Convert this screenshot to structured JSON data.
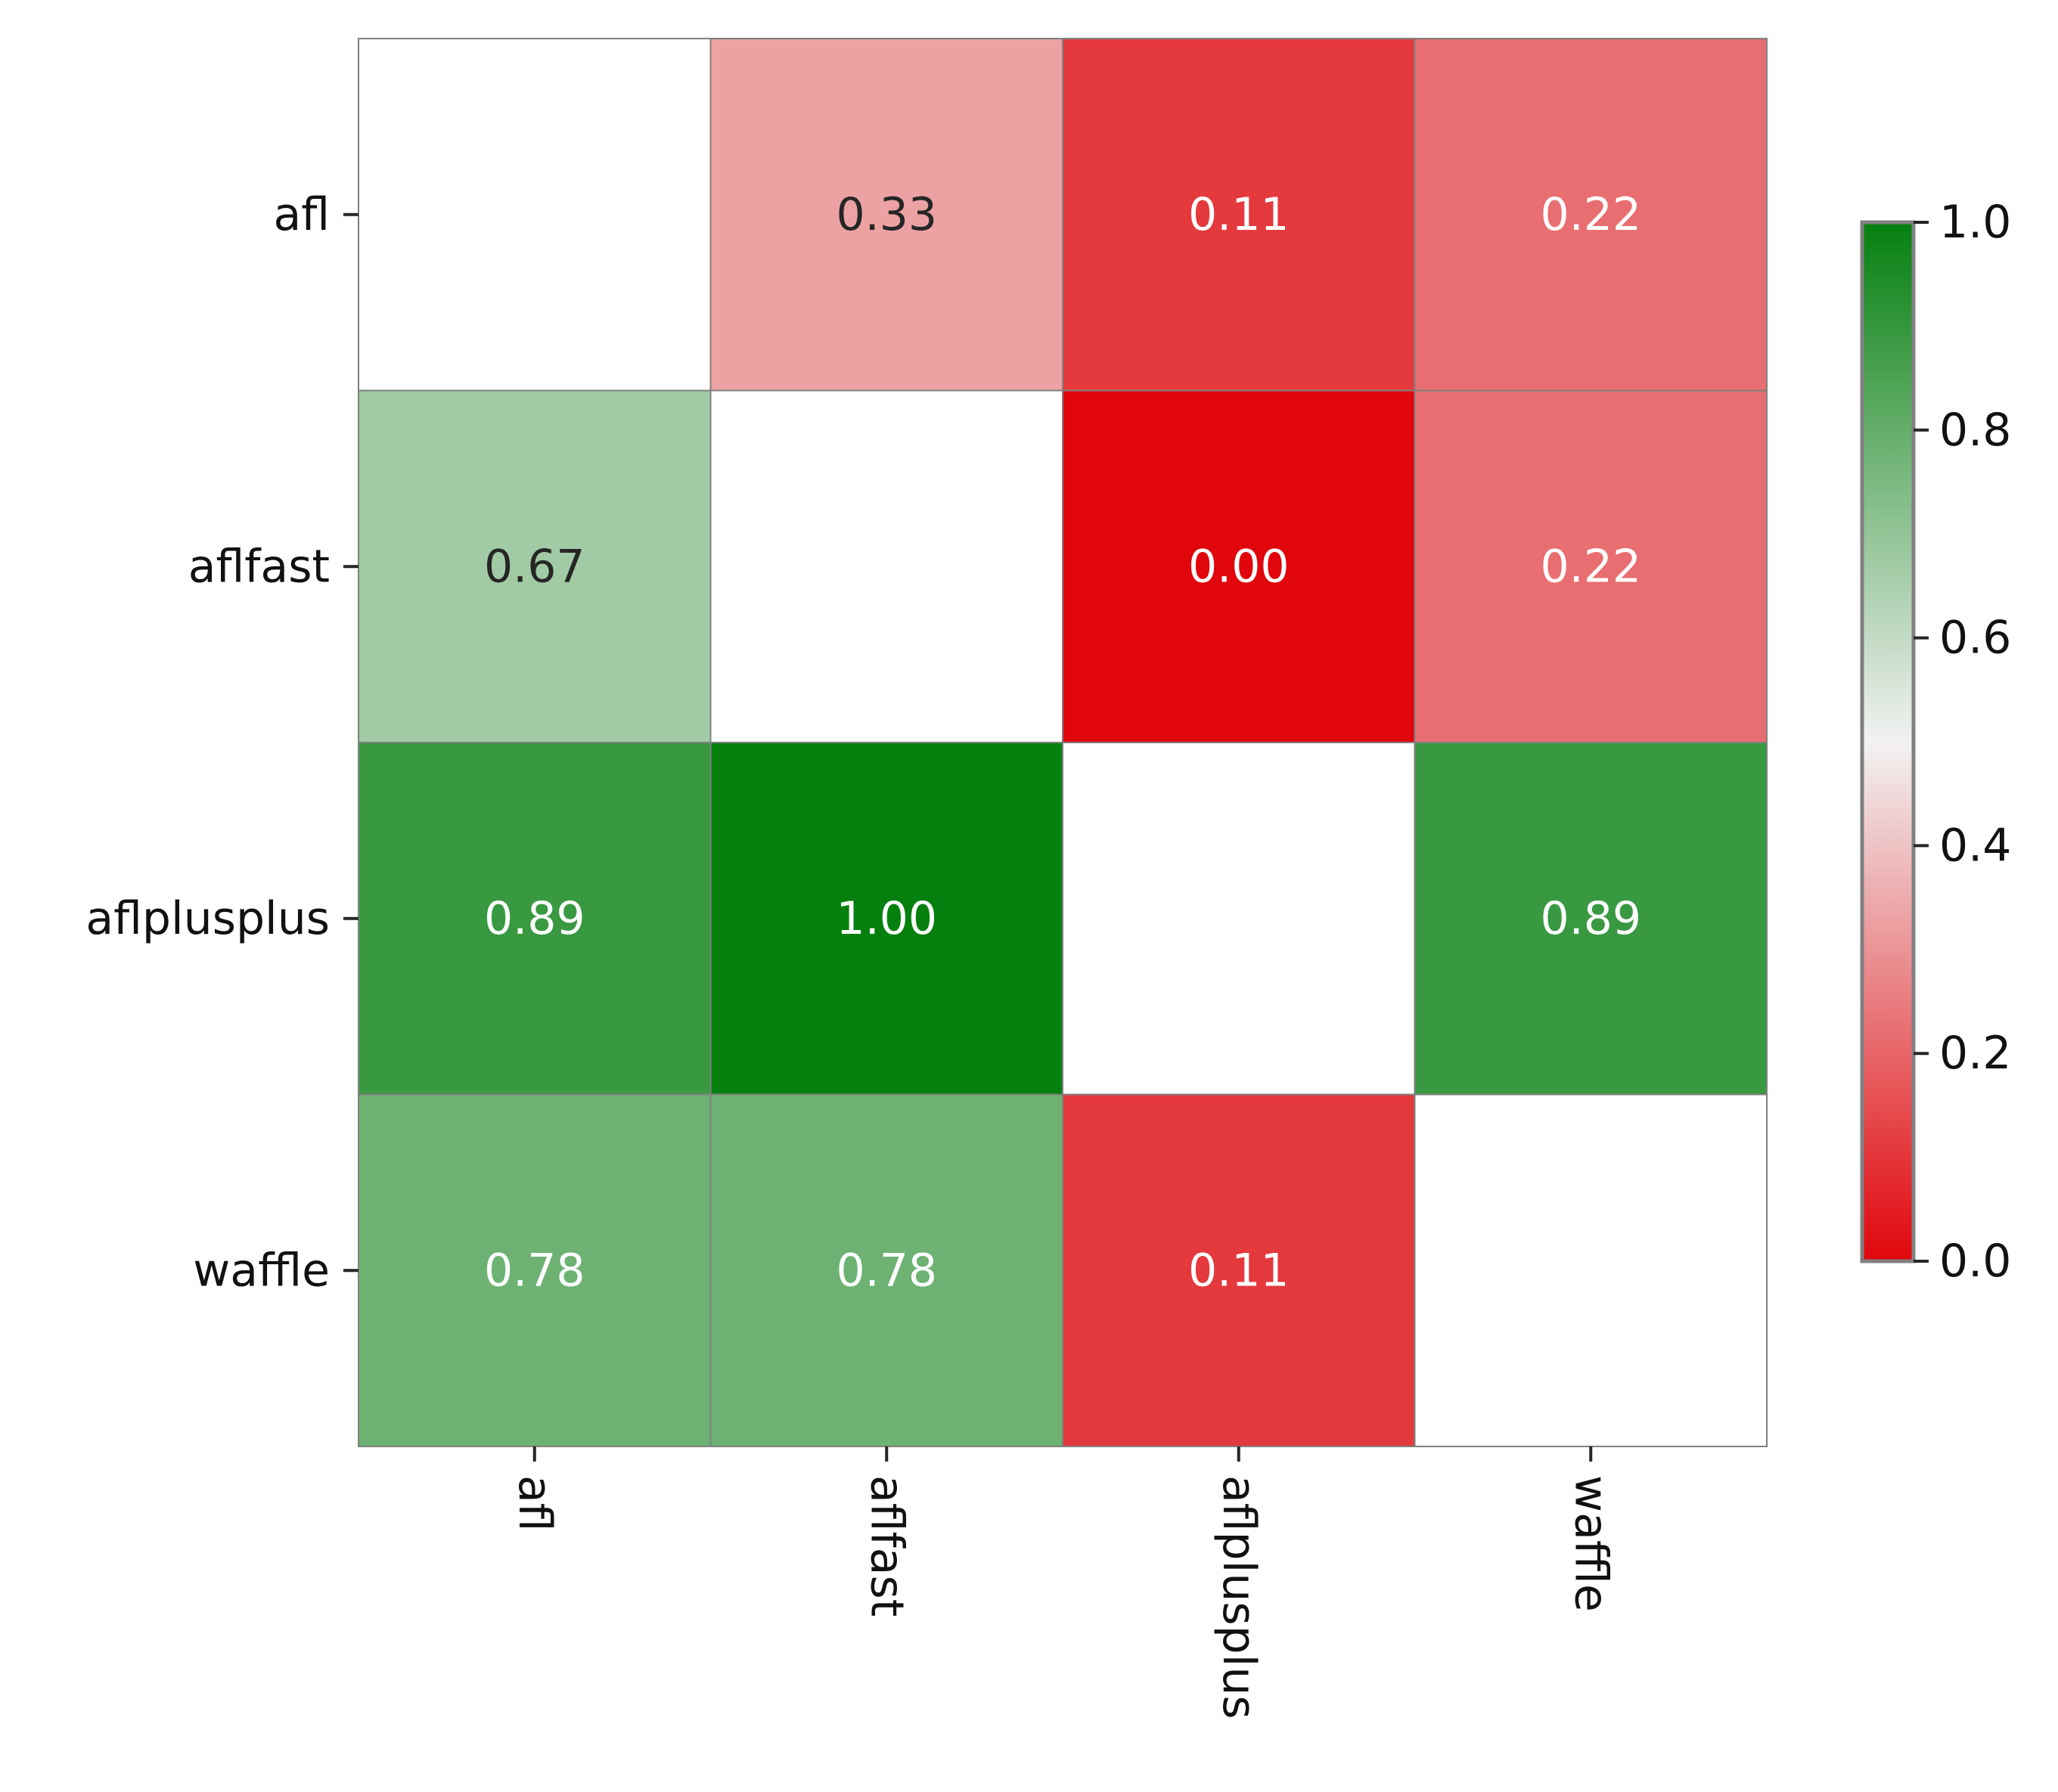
{
  "chart_data": {
    "type": "heatmap",
    "title": "",
    "xlabel": "",
    "ylabel": "",
    "rows": [
      "afl",
      "aflfast",
      "aflplusplus",
      "waffle"
    ],
    "columns": [
      "afl",
      "aflfast",
      "aflplusplus",
      "waffle"
    ],
    "values": [
      [
        null,
        0.33,
        0.11,
        0.22
      ],
      [
        0.67,
        null,
        0.0,
        0.22
      ],
      [
        0.89,
        1.0,
        null,
        0.89
      ],
      [
        0.78,
        0.78,
        0.11,
        null
      ]
    ],
    "cell_labels": [
      [
        "",
        "0.33",
        "0.11",
        "0.22"
      ],
      [
        "0.67",
        "",
        "0.00",
        "0.22"
      ],
      [
        "0.89",
        "1.00",
        "",
        "0.89"
      ],
      [
        "0.78",
        "0.78",
        "0.11",
        ""
      ]
    ],
    "vlim": [
      0,
      1
    ],
    "colorbar": {
      "ticks": [
        0.0,
        0.2,
        0.4,
        0.6,
        0.8,
        1.0
      ],
      "tick_labels": [
        "0.0",
        "0.2",
        "0.4",
        "0.6",
        "0.8",
        "1.0"
      ],
      "placement": "right"
    },
    "colormap": {
      "low": "#e0060b",
      "mid": "#f2f2f2",
      "high": "#05800f"
    },
    "empty_cell_color": "#ffffff",
    "cell_border_color": "#808080",
    "text_color_dark": "#262626",
    "text_color_light": "#ffffff",
    "grid": false,
    "legend": "none"
  }
}
